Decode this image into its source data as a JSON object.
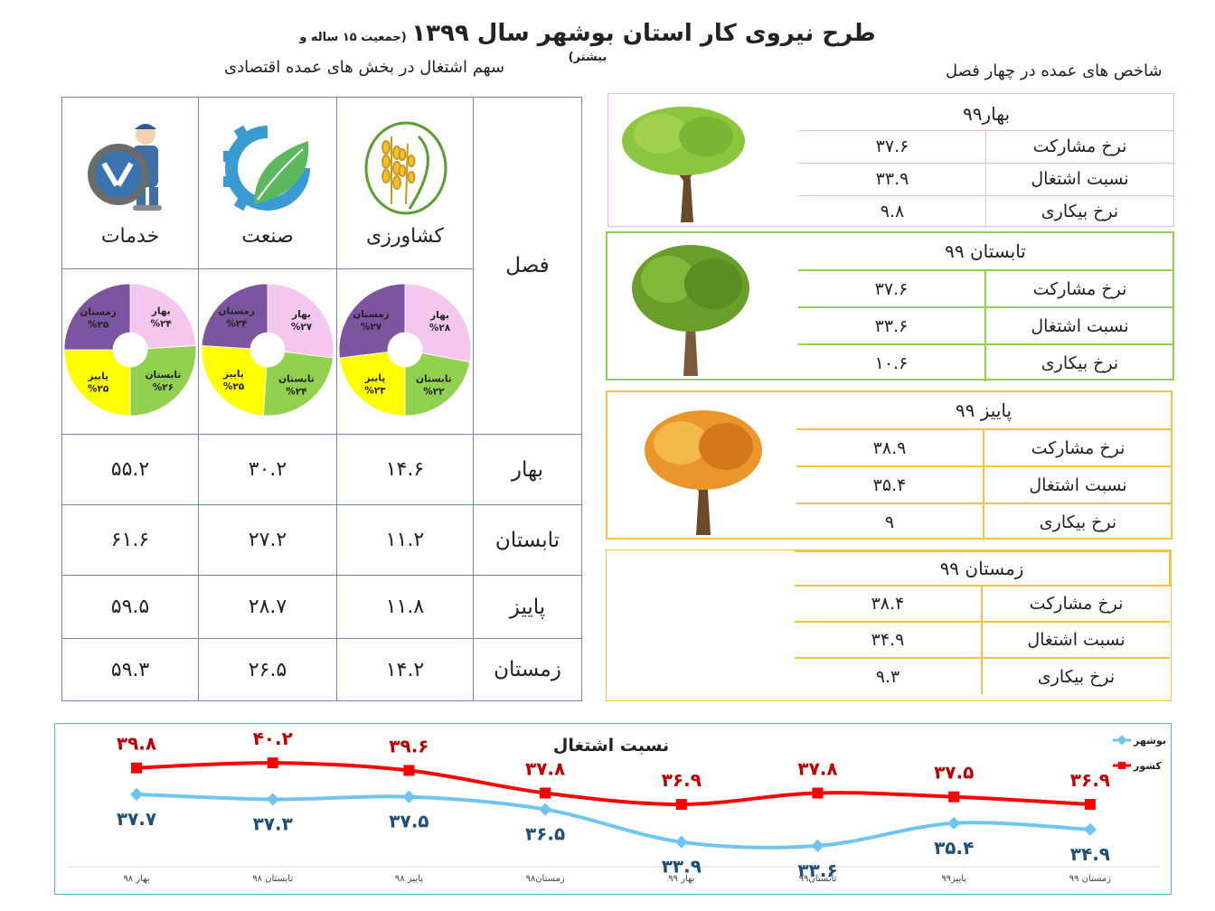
{
  "header": {
    "title": "طرح نیروی کار استان بوشهر سال ۱۳۹۹",
    "title_note": "(جمعیت ۱۵ ساله و بیشتر)",
    "left_subtitle": "سهم اشتغال در بخش های عمده اقتصادی",
    "right_subtitle": "شاخص های عمده در چهار فصل"
  },
  "sector_table": {
    "season_header": "فصل",
    "sectors": [
      {
        "name": "کشاورزی",
        "icon": "agriculture-icon"
      },
      {
        "name": "صنعت",
        "icon": "industry-icon"
      },
      {
        "name": "خدمات",
        "icon": "services-icon"
      }
    ],
    "rows": [
      {
        "season": "بهار",
        "values": [
          "۱۴.۶",
          "۳۰.۲",
          "۵۵.۲"
        ]
      },
      {
        "season": "تابستان",
        "values": [
          "۱۱.۲",
          "۲۷.۲",
          "۶۱.۶"
        ]
      },
      {
        "season": "پاییز",
        "values": [
          "۱۱.۸",
          "۲۸.۷",
          "۵۹.۵"
        ]
      },
      {
        "season": "زمستان",
        "values": [
          "۱۴.۲",
          "۲۶.۵",
          "۵۹.۳"
        ]
      }
    ]
  },
  "season_indicators": [
    {
      "title": "بهار۹۹",
      "rows": [
        {
          "label": "نرخ مشارکت",
          "value": "۳۷.۶"
        },
        {
          "label": "نسبت اشتغال",
          "value": "۳۳.۹"
        },
        {
          "label": "نرخ بیکاری",
          "value": "۹.۸"
        }
      ]
    },
    {
      "title": "تابستان ۹۹",
      "rows": [
        {
          "label": "نرخ مشارکت",
          "value": "۳۷.۶"
        },
        {
          "label": "نسبت اشتغال",
          "value": "۳۳.۶"
        },
        {
          "label": "نرخ بیکاری",
          "value": "۱۰.۶"
        }
      ]
    },
    {
      "title": "پاییز ۹۹",
      "rows": [
        {
          "label": "نرخ مشارکت",
          "value": "۳۸.۹"
        },
        {
          "label": "نسبت اشتغال",
          "value": "۳۵.۴"
        },
        {
          "label": "نرخ بیکاری",
          "value": "۹"
        }
      ]
    },
    {
      "title": "زمستان ۹۹",
      "rows": [
        {
          "label": "نرخ مشارکت",
          "value": "۳۸.۴"
        },
        {
          "label": "نسبت اشتغال",
          "value": "۳۴.۹"
        },
        {
          "label": "نرخ بیکاری",
          "value": "۹.۳"
        }
      ]
    }
  ],
  "chart_data": [
    {
      "type": "pie",
      "variant": "donut",
      "sector": "کشاورزی",
      "slices": [
        {
          "label": "بهار",
          "value": 28,
          "display": "%۲۸",
          "color": "#f5c6ee"
        },
        {
          "label": "تابستان",
          "value": 22,
          "display": "%۲۲",
          "color": "#92d050"
        },
        {
          "label": "پاییز",
          "value": 23,
          "display": "%۲۳",
          "color": "#ffff00"
        },
        {
          "label": "زمستان",
          "value": 27,
          "display": "%۲۷",
          "color": "#7b559f"
        }
      ]
    },
    {
      "type": "pie",
      "variant": "donut",
      "sector": "صنعت",
      "slices": [
        {
          "label": "بهار",
          "value": 27,
          "display": "%۲۷",
          "color": "#f5c6ee"
        },
        {
          "label": "تابستان",
          "value": 24,
          "display": "%۲۴",
          "color": "#92d050"
        },
        {
          "label": "پاییز",
          "value": 25,
          "display": "%۲۵",
          "color": "#ffff00"
        },
        {
          "label": "زمستان",
          "value": 24,
          "display": "%۲۴",
          "color": "#7b559f"
        }
      ]
    },
    {
      "type": "pie",
      "variant": "donut",
      "sector": "خدمات",
      "slices": [
        {
          "label": "بهار",
          "value": 24,
          "display": "%۲۴",
          "color": "#f5c6ee"
        },
        {
          "label": "تابستان",
          "value": 26,
          "display": "%۲۶",
          "color": "#92d050"
        },
        {
          "label": "پاییز",
          "value": 25,
          "display": "%۲۵",
          "color": "#ffff00"
        },
        {
          "label": "زمستان",
          "value": 25,
          "display": "%۲۵",
          "color": "#7b559f"
        }
      ]
    },
    {
      "type": "line",
      "title": "نسبت اشتغال",
      "categories": [
        "بهار ۹۸",
        "تابستان ۹۸",
        "پاییز ۹۸",
        "زمستان۹۸",
        "بهار ۹۹",
        "تابستان۹۹",
        "پاییز۹۹",
        "زمستان ۹۹"
      ],
      "series": [
        {
          "name": "بوشهر",
          "color": "#6ec6f0",
          "values": [
            37.7,
            37.3,
            37.5,
            36.5,
            33.9,
            33.6,
            35.4,
            34.9
          ],
          "labels": [
            "۳۷.۷",
            "۳۷.۳",
            "۳۷.۵",
            "۳۶.۵",
            "۳۳.۹",
            "۳۳.۶",
            "۳۵.۴",
            "۳۴.۹"
          ]
        },
        {
          "name": "کشور",
          "color": "#ff0000",
          "values": [
            39.8,
            40.2,
            39.6,
            37.8,
            36.9,
            37.8,
            37.5,
            36.9
          ],
          "labels": [
            "۳۹.۸",
            "۴۰.۲",
            "۳۹.۶",
            "۳۷.۸",
            "۳۶.۹",
            "۳۷.۸",
            "۳۷.۵",
            "۳۶.۹"
          ]
        }
      ],
      "legend_position": "top-right"
    }
  ]
}
